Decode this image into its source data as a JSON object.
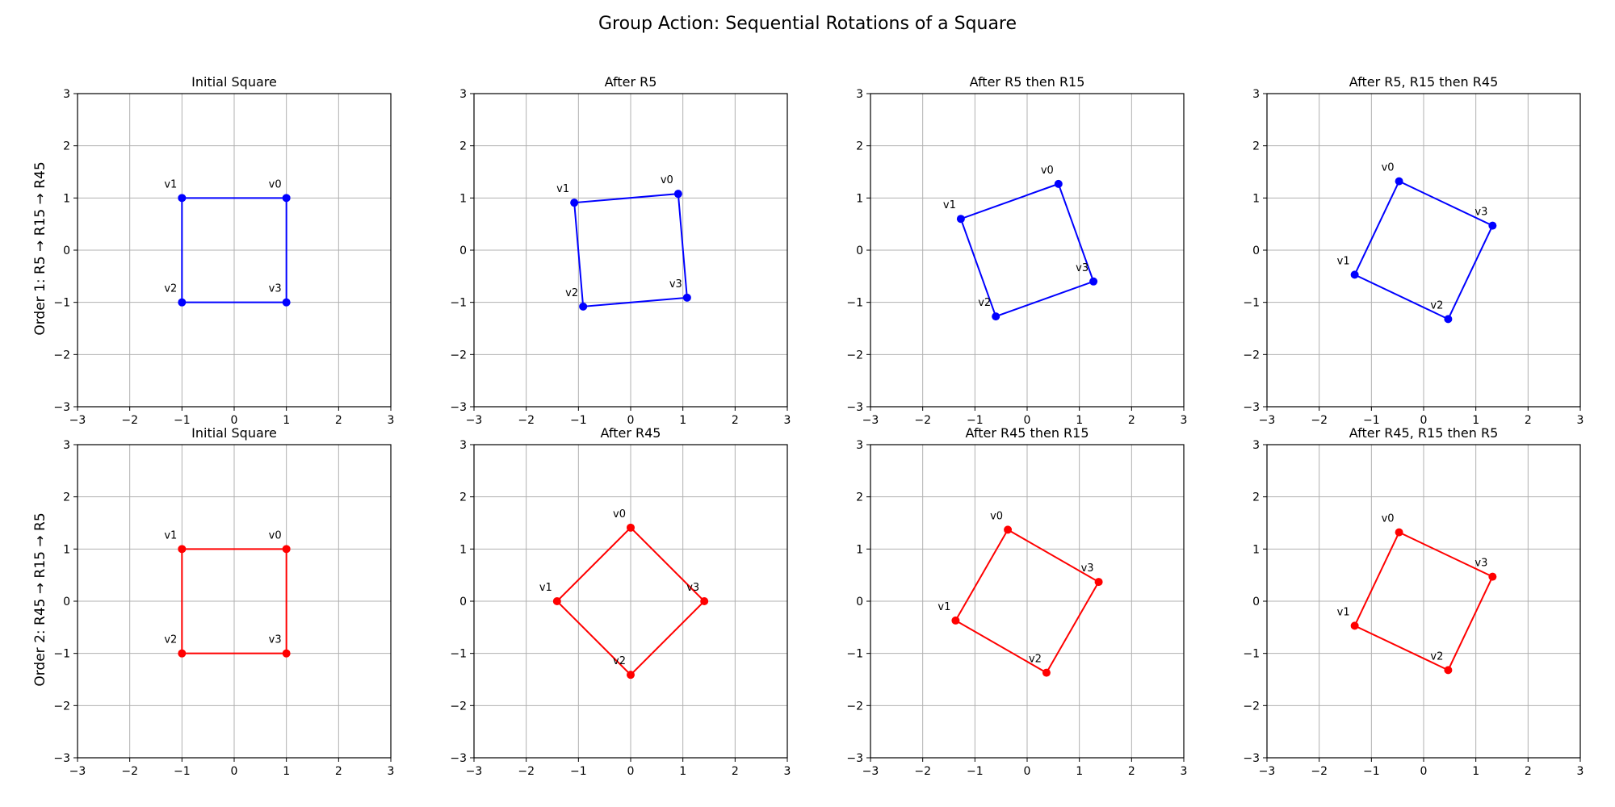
{
  "figure": {
    "title": "Group Action: Sequential Rotations of a Square",
    "row_labels": [
      "Order 1: R5 → R15 → R45",
      "Order 2: R45 → R15 → R5"
    ]
  },
  "chart_data": [
    {
      "type": "scatter",
      "row": 0,
      "col": 0,
      "color": "#0000ff",
      "title": "Initial Square",
      "xlim": [
        -3,
        3
      ],
      "ylim": [
        -3,
        3
      ],
      "xticks": [
        -3,
        -2,
        -1,
        0,
        1,
        2,
        3
      ],
      "yticks": [
        -3,
        -2,
        -1,
        0,
        1,
        2,
        3
      ],
      "tick_labels": [
        "−3",
        "−2",
        "−1",
        "0",
        "1",
        "2",
        "3"
      ],
      "grid": true,
      "vertices": [
        {
          "label": "v0",
          "x": 1.0,
          "y": 1.0
        },
        {
          "label": "v1",
          "x": -1.0,
          "y": 1.0
        },
        {
          "label": "v2",
          "x": -1.0,
          "y": -1.0
        },
        {
          "label": "v3",
          "x": 1.0,
          "y": -1.0
        }
      ]
    },
    {
      "type": "scatter",
      "row": 0,
      "col": 1,
      "color": "#0000ff",
      "title": "After R5",
      "xlim": [
        -3,
        3
      ],
      "ylim": [
        -3,
        3
      ],
      "xticks": [
        -3,
        -2,
        -1,
        0,
        1,
        2,
        3
      ],
      "yticks": [
        -3,
        -2,
        -1,
        0,
        1,
        2,
        3
      ],
      "tick_labels": [
        "−3",
        "−2",
        "−1",
        "0",
        "1",
        "2",
        "3"
      ],
      "grid": true,
      "vertices": [
        {
          "label": "v0",
          "x": 0.91,
          "y": 1.08
        },
        {
          "label": "v1",
          "x": -1.08,
          "y": 0.91
        },
        {
          "label": "v2",
          "x": -0.91,
          "y": -1.08
        },
        {
          "label": "v3",
          "x": 1.08,
          "y": -0.91
        }
      ]
    },
    {
      "type": "scatter",
      "row": 0,
      "col": 2,
      "color": "#0000ff",
      "title": "After R5 then R15",
      "xlim": [
        -3,
        3
      ],
      "ylim": [
        -3,
        3
      ],
      "xticks": [
        -3,
        -2,
        -1,
        0,
        1,
        2,
        3
      ],
      "yticks": [
        -3,
        -2,
        -1,
        0,
        1,
        2,
        3
      ],
      "tick_labels": [
        "−3",
        "−2",
        "−1",
        "0",
        "1",
        "2",
        "3"
      ],
      "grid": true,
      "vertices": [
        {
          "label": "v0",
          "x": 0.6,
          "y": 1.27
        },
        {
          "label": "v1",
          "x": -1.27,
          "y": 0.6
        },
        {
          "label": "v2",
          "x": -0.6,
          "y": -1.27
        },
        {
          "label": "v3",
          "x": 1.27,
          "y": -0.6
        }
      ]
    },
    {
      "type": "scatter",
      "row": 0,
      "col": 3,
      "color": "#0000ff",
      "title": "After R5, R15 then R45",
      "xlim": [
        -3,
        3
      ],
      "ylim": [
        -3,
        3
      ],
      "xticks": [
        -3,
        -2,
        -1,
        0,
        1,
        2,
        3
      ],
      "yticks": [
        -3,
        -2,
        -1,
        0,
        1,
        2,
        3
      ],
      "tick_labels": [
        "−3",
        "−2",
        "−1",
        "0",
        "1",
        "2",
        "3"
      ],
      "grid": true,
      "vertices": [
        {
          "label": "v0",
          "x": -0.47,
          "y": 1.32
        },
        {
          "label": "v1",
          "x": -1.32,
          "y": -0.47
        },
        {
          "label": "v2",
          "x": 0.47,
          "y": -1.32
        },
        {
          "label": "v3",
          "x": 1.32,
          "y": 0.47
        }
      ]
    },
    {
      "type": "scatter",
      "row": 1,
      "col": 0,
      "color": "#ff0000",
      "title": "Initial Square",
      "xlim": [
        -3,
        3
      ],
      "ylim": [
        -3,
        3
      ],
      "xticks": [
        -3,
        -2,
        -1,
        0,
        1,
        2,
        3
      ],
      "yticks": [
        -3,
        -2,
        -1,
        0,
        1,
        2,
        3
      ],
      "tick_labels": [
        "−3",
        "−2",
        "−1",
        "0",
        "1",
        "2",
        "3"
      ],
      "grid": true,
      "vertices": [
        {
          "label": "v0",
          "x": 1.0,
          "y": 1.0
        },
        {
          "label": "v1",
          "x": -1.0,
          "y": 1.0
        },
        {
          "label": "v2",
          "x": -1.0,
          "y": -1.0
        },
        {
          "label": "v3",
          "x": 1.0,
          "y": -1.0
        }
      ]
    },
    {
      "type": "scatter",
      "row": 1,
      "col": 1,
      "color": "#ff0000",
      "title": "After R45",
      "xlim": [
        -3,
        3
      ],
      "ylim": [
        -3,
        3
      ],
      "xticks": [
        -3,
        -2,
        -1,
        0,
        1,
        2,
        3
      ],
      "yticks": [
        -3,
        -2,
        -1,
        0,
        1,
        2,
        3
      ],
      "tick_labels": [
        "−3",
        "−2",
        "−1",
        "0",
        "1",
        "2",
        "3"
      ],
      "grid": true,
      "vertices": [
        {
          "label": "v0",
          "x": 0.0,
          "y": 1.41
        },
        {
          "label": "v1",
          "x": -1.41,
          "y": 0.0
        },
        {
          "label": "v2",
          "x": 0.0,
          "y": -1.41
        },
        {
          "label": "v3",
          "x": 1.41,
          "y": 0.0
        }
      ]
    },
    {
      "type": "scatter",
      "row": 1,
      "col": 2,
      "color": "#ff0000",
      "title": "After R45 then R15",
      "xlim": [
        -3,
        3
      ],
      "ylim": [
        -3,
        3
      ],
      "xticks": [
        -3,
        -2,
        -1,
        0,
        1,
        2,
        3
      ],
      "yticks": [
        -3,
        -2,
        -1,
        0,
        1,
        2,
        3
      ],
      "tick_labels": [
        "−3",
        "−2",
        "−1",
        "0",
        "1",
        "2",
        "3"
      ],
      "grid": true,
      "vertices": [
        {
          "label": "v0",
          "x": -0.37,
          "y": 1.37
        },
        {
          "label": "v1",
          "x": -1.37,
          "y": -0.37
        },
        {
          "label": "v2",
          "x": 0.37,
          "y": -1.37
        },
        {
          "label": "v3",
          "x": 1.37,
          "y": 0.37
        }
      ]
    },
    {
      "type": "scatter",
      "row": 1,
      "col": 3,
      "color": "#ff0000",
      "title": "After R45, R15 then R5",
      "xlim": [
        -3,
        3
      ],
      "ylim": [
        -3,
        3
      ],
      "xticks": [
        -3,
        -2,
        -1,
        0,
        1,
        2,
        3
      ],
      "yticks": [
        -3,
        -2,
        -1,
        0,
        1,
        2,
        3
      ],
      "tick_labels": [
        "−3",
        "−2",
        "−1",
        "0",
        "1",
        "2",
        "3"
      ],
      "grid": true,
      "vertices": [
        {
          "label": "v0",
          "x": -0.47,
          "y": 1.32
        },
        {
          "label": "v1",
          "x": -1.32,
          "y": -0.47
        },
        {
          "label": "v2",
          "x": 0.47,
          "y": -1.32
        },
        {
          "label": "v3",
          "x": 1.32,
          "y": 0.47
        }
      ]
    }
  ]
}
